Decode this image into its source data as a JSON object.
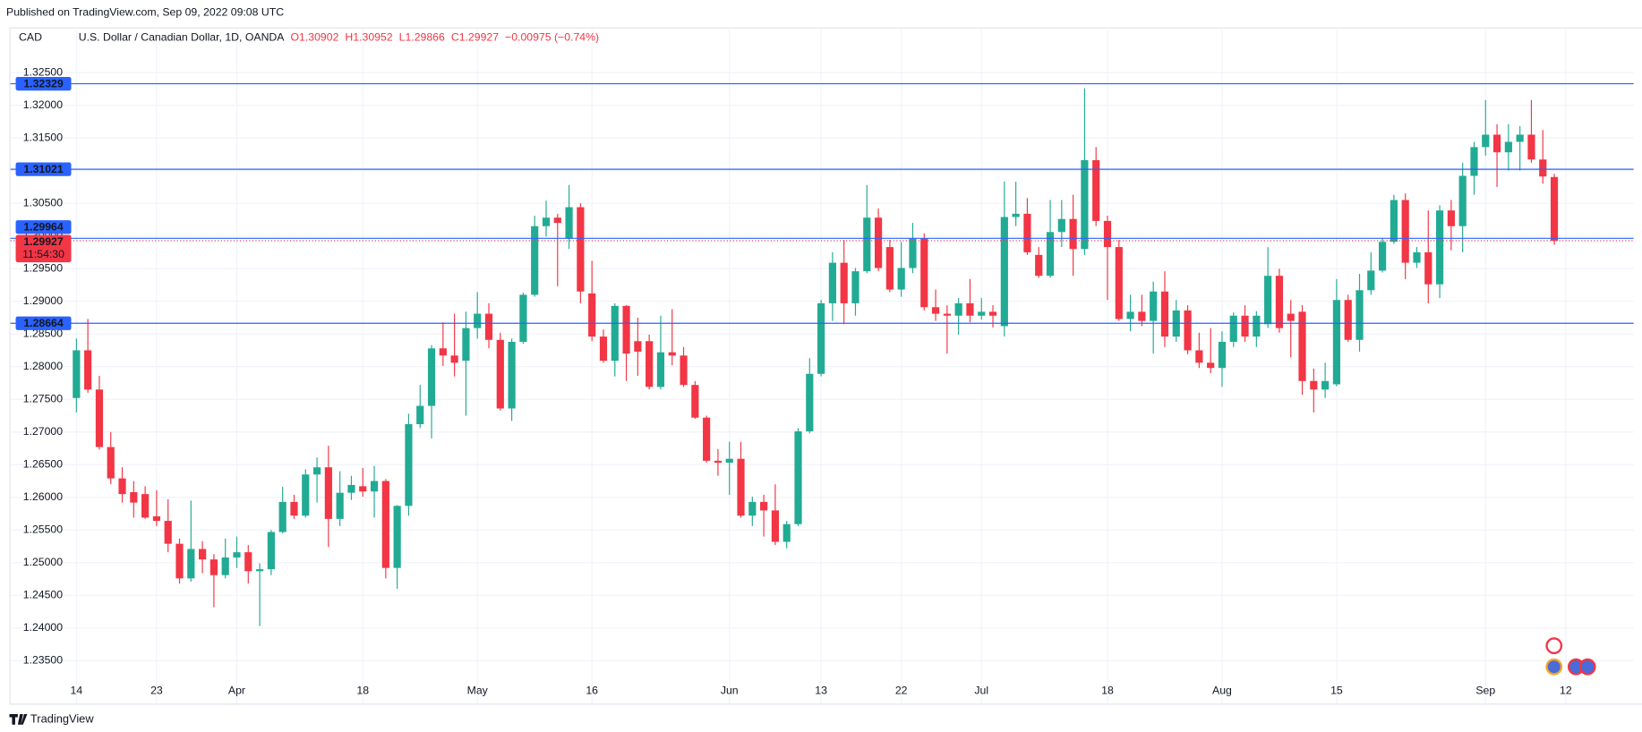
{
  "published": "Published on TradingView.com, Sep 09, 2022 09:08 UTC",
  "brand": "TradingView",
  "chart_data": {
    "type": "candlestick",
    "currency": "CAD",
    "title": "U.S. Dollar / Canadian Dollar, 1D, OANDA",
    "header_values": [
      "O1.30902",
      "H1.30952",
      "L1.29866",
      "C1.29927",
      "−0.00975 (−0.74%)"
    ],
    "up_color": "#22ab94",
    "down_color": "#f23645",
    "hline_color": "#2962ff",
    "grid": true,
    "countdown": "11:54:30",
    "ylim": [
      1.2286,
      1.3316
    ],
    "yticks": [
      {
        "value": 1.325,
        "label": "1.32500"
      },
      {
        "value": 1.32,
        "label": "1.32000"
      },
      {
        "value": 1.315,
        "label": "1.31500"
      },
      {
        "value": 1.31,
        "label": "1.31000"
      },
      {
        "value": 1.305,
        "label": "1.30500"
      },
      {
        "value": 1.3,
        "label": "1.30000"
      },
      {
        "value": 1.295,
        "label": "1.29500"
      },
      {
        "value": 1.29,
        "label": "1.29000"
      },
      {
        "value": 1.285,
        "label": "1.28500"
      },
      {
        "value": 1.28,
        "label": "1.28000"
      },
      {
        "value": 1.275,
        "label": "1.27500"
      },
      {
        "value": 1.27,
        "label": "1.27000"
      },
      {
        "value": 1.265,
        "label": "1.26500"
      },
      {
        "value": 1.26,
        "label": "1.26000"
      },
      {
        "value": 1.255,
        "label": "1.25500"
      },
      {
        "value": 1.25,
        "label": "1.25000"
      },
      {
        "value": 1.245,
        "label": "1.24500"
      },
      {
        "value": 1.24,
        "label": "1.24000"
      },
      {
        "value": 1.235,
        "label": "1.23500"
      }
    ],
    "hlines": [
      1.32329,
      1.31021,
      1.29964,
      1.28664
    ],
    "categories": [
      "14",
      null,
      null,
      null,
      null,
      null,
      null,
      "23",
      null,
      null,
      null,
      null,
      null,
      null,
      "Apr",
      null,
      null,
      null,
      null,
      null,
      null,
      null,
      null,
      null,
      null,
      "18",
      null,
      null,
      null,
      null,
      null,
      null,
      null,
      null,
      null,
      "May",
      null,
      null,
      null,
      null,
      null,
      null,
      null,
      null,
      null,
      "16",
      null,
      null,
      null,
      null,
      null,
      null,
      null,
      null,
      null,
      null,
      null,
      "Jun",
      null,
      null,
      null,
      null,
      null,
      null,
      null,
      "13",
      null,
      null,
      null,
      null,
      null,
      null,
      "22",
      null,
      null,
      null,
      null,
      null,
      null,
      "Jul",
      null,
      null,
      null,
      null,
      null,
      null,
      null,
      null,
      null,
      null,
      "18",
      null,
      null,
      null,
      null,
      null,
      null,
      null,
      null,
      null,
      "Aug",
      null,
      null,
      null,
      null,
      null,
      null,
      null,
      null,
      null,
      "15",
      null,
      null,
      null,
      null,
      null,
      null,
      null,
      null,
      null,
      null,
      null,
      null,
      "Sep",
      null,
      null,
      null,
      null,
      null,
      null,
      "12",
      null,
      null,
      null,
      null,
      null,
      null
    ],
    "open": [
      1.2752,
      1.2825,
      1.2765,
      1.2677,
      1.2629,
      1.2608,
      1.2605,
      1.2571,
      1.2564,
      1.2529,
      1.2476,
      1.2521,
      1.2505,
      1.2481,
      1.2508,
      1.2516,
      1.2487,
      1.249,
      1.2547,
      1.2593,
      1.2572,
      1.2635,
      1.2646,
      1.2567,
      1.2607,
      1.2617,
      1.2609,
      1.2625,
      1.2492,
      1.2587,
      1.2712,
      1.274,
      1.2828,
      1.2817,
      1.2809,
      1.2859,
      1.2881,
      1.2841,
      1.2736,
      1.2838,
      1.291,
      1.3015,
      1.3028,
      1.2996,
      1.3044,
      1.2912,
      1.2846,
      1.2809,
      1.2893,
      1.2839,
      1.2839,
      1.2769,
      1.2822,
      1.2817,
      1.2772,
      1.2722,
      1.2656,
      1.2653,
      1.2659,
      1.2572,
      1.2593,
      1.258,
      1.2532,
      1.2559,
      1.2701,
      1.2789,
      1.2897,
      1.2959,
      1.2897,
      1.2946,
      1.3028,
      1.2983,
      1.2918,
      1.2951,
      1.2996,
      1.2891,
      1.2881,
      1.2878,
      1.2897,
      1.2878,
      1.2884,
      1.2862,
      1.3029,
      1.3034,
      1.2971,
      1.2939,
      1.3006,
      1.3026,
      1.298,
      1.3116,
      1.3023,
      1.2983,
      1.2873,
      1.2884,
      1.287,
      1.2915,
      1.2846,
      1.2886,
      1.2825,
      1.2806,
      1.2798,
      1.2838,
      1.2878,
      1.2846,
      1.2865,
      1.2939,
      1.2881,
      1.2884,
      1.2778,
      1.2765,
      1.2773,
      1.2902,
      1.2841,
      1.2917,
      1.2947,
      1.2991,
      1.3055,
      1.2959,
      1.2975,
      1.2926,
      1.3039,
      1.3015,
      1.3092,
      1.3136,
      1.3155,
      1.3128,
      1.3144,
      1.3155,
      1.3117,
      1.30902,
      null,
      null,
      null,
      null,
      null,
      null,
      null
    ],
    "high": [
      1.2843,
      1.2873,
      1.2786,
      1.27,
      1.2646,
      1.2625,
      1.2617,
      1.2611,
      1.2597,
      1.2537,
      1.2595,
      1.2533,
      1.2513,
      1.2537,
      1.254,
      1.2527,
      1.2499,
      1.255,
      1.2616,
      1.2604,
      1.2643,
      1.2661,
      1.2679,
      1.264,
      1.2633,
      1.2645,
      1.2648,
      1.2628,
      1.2588,
      1.2728,
      1.2772,
      1.2833,
      1.2868,
      1.2881,
      1.2884,
      1.2914,
      1.2897,
      1.2852,
      1.2843,
      1.2913,
      1.3031,
      1.3054,
      1.3034,
      1.3078,
      1.305,
      1.2962,
      1.2857,
      1.2897,
      1.2894,
      1.2875,
      1.2849,
      1.2878,
      1.2888,
      1.283,
      1.2778,
      1.2725,
      1.2674,
      1.2685,
      1.2685,
      1.2601,
      1.2604,
      1.262,
      1.2564,
      1.2706,
      1.2813,
      1.2902,
      1.2975,
      1.2994,
      1.2951,
      1.3078,
      1.3042,
      1.2994,
      1.2991,
      1.302,
      1.3004,
      1.2918,
      1.2894,
      1.2905,
      1.2934,
      1.2905,
      1.2894,
      1.3083,
      1.3083,
      1.3058,
      1.2983,
      1.3055,
      1.3055,
      1.3063,
      1.3226,
      1.3136,
      1.3031,
      1.2994,
      1.291,
      1.291,
      1.293,
      1.2946,
      1.2902,
      1.2894,
      1.2852,
      1.2859,
      1.2854,
      1.2883,
      1.2894,
      1.2885,
      1.2983,
      1.295,
      1.2902,
      1.2894,
      1.2797,
      1.2806,
      1.2934,
      1.291,
      1.2942,
      1.2975,
      1.2997,
      1.3063,
      1.3065,
      1.2983,
      1.3039,
      1.3047,
      1.3055,
      1.3112,
      1.3144,
      1.3208,
      1.3171,
      1.3171,
      1.3168,
      1.3208,
      1.3162,
      1.30952,
      null,
      null,
      null,
      null,
      null,
      null,
      null
    ],
    "low": [
      1.273,
      1.276,
      1.2673,
      1.262,
      1.2592,
      1.2569,
      1.2567,
      1.2556,
      1.2516,
      1.2468,
      1.2471,
      1.2484,
      1.2432,
      1.2476,
      1.2492,
      1.2468,
      1.2403,
      1.2481,
      1.2545,
      1.2567,
      1.2569,
      1.2592,
      1.2524,
      1.2556,
      1.2596,
      1.2601,
      1.2569,
      1.2476,
      1.246,
      1.2572,
      1.2706,
      1.269,
      1.2801,
      1.2785,
      1.2725,
      1.2843,
      1.2828,
      1.2733,
      1.2717,
      1.2835,
      1.2907,
      1.2999,
      1.2923,
      1.298,
      1.2897,
      1.2839,
      1.2806,
      1.2785,
      1.2778,
      1.2786,
      1.2765,
      1.2765,
      1.2802,
      1.2769,
      1.272,
      1.2653,
      1.2633,
      1.2604,
      1.2569,
      1.2556,
      1.254,
      1.2527,
      1.2522,
      1.2556,
      1.2698,
      1.2785,
      1.287,
      1.2865,
      1.2878,
      1.2943,
      1.2946,
      1.2914,
      1.2907,
      1.2943,
      1.2886,
      1.287,
      1.282,
      1.2849,
      1.2868,
      1.2872,
      1.286,
      1.2846,
      1.3015,
      1.2971,
      1.2936,
      1.2936,
      1.2983,
      1.2939,
      1.2971,
      1.3015,
      1.2902,
      1.287,
      1.2854,
      1.2862,
      1.282,
      1.283,
      1.2838,
      1.2819,
      1.2798,
      1.279,
      1.2769,
      1.283,
      1.2838,
      1.283,
      1.2859,
      1.2852,
      1.2814,
      1.2757,
      1.273,
      1.2752,
      1.277,
      1.2838,
      1.2823,
      1.291,
      1.2944,
      1.2988,
      1.2934,
      1.2951,
      1.2897,
      1.2905,
      1.2978,
      1.2975,
      1.3063,
      1.3123,
      1.3075,
      1.31,
      1.31,
      1.3112,
      1.308,
      1.29866,
      null,
      null,
      null,
      null,
      null,
      null,
      null
    ],
    "close": [
      1.2825,
      1.2765,
      1.2677,
      1.2629,
      1.2605,
      1.2592,
      1.2569,
      1.2564,
      1.2529,
      1.2476,
      1.2521,
      1.2505,
      1.2481,
      1.2508,
      1.2516,
      1.2487,
      1.249,
      1.2547,
      1.2593,
      1.2572,
      1.2635,
      1.2646,
      1.2567,
      1.2607,
      1.2619,
      1.2609,
      1.2625,
      1.2492,
      1.2587,
      1.2712,
      1.274,
      1.2828,
      1.2817,
      1.2806,
      1.2859,
      1.2881,
      1.2841,
      1.2736,
      1.2838,
      1.291,
      1.3015,
      1.3028,
      1.302,
      1.3044,
      1.2915,
      1.2846,
      1.2809,
      1.2893,
      1.282,
      1.2823,
      1.2769,
      1.2822,
      1.2817,
      1.2772,
      1.2722,
      1.2656,
      1.2653,
      1.2659,
      1.2572,
      1.2593,
      1.258,
      1.2532,
      1.2559,
      1.2701,
      1.2789,
      1.2897,
      1.2959,
      1.2897,
      1.2946,
      1.3028,
      1.2951,
      1.2918,
      1.2951,
      1.2996,
      1.2891,
      1.2881,
      1.2878,
      1.2897,
      1.2878,
      1.2884,
      1.2878,
      1.3029,
      1.3034,
      1.2975,
      1.2939,
      1.3006,
      1.3026,
      1.298,
      1.3116,
      1.3023,
      1.2983,
      1.2873,
      1.2884,
      1.287,
      1.2915,
      1.2846,
      1.2886,
      1.2825,
      1.2806,
      1.2798,
      1.2838,
      1.2878,
      1.2846,
      1.2878,
      1.2939,
      1.2859,
      1.287,
      1.2778,
      1.2765,
      1.2778,
      1.2902,
      1.2841,
      1.2917,
      1.2947,
      1.2991,
      1.3055,
      1.2959,
      1.2975,
      1.2926,
      1.3039,
      1.3015,
      1.3092,
      1.3136,
      1.3155,
      1.3128,
      1.3144,
      1.3155,
      1.3117,
      1.3091,
      1.29927,
      null,
      null,
      null,
      null,
      null,
      null,
      null
    ]
  }
}
